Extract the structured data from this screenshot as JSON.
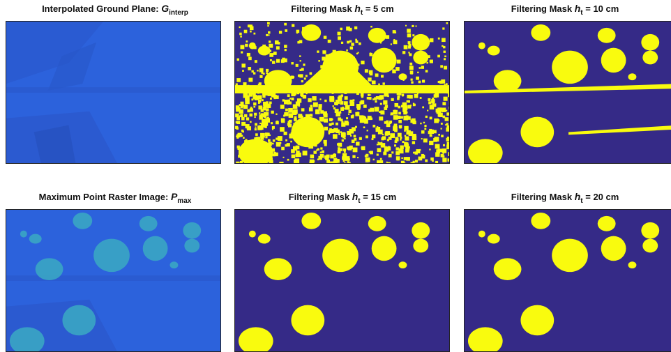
{
  "panels": [
    {
      "title": {
        "text": "Interpolated Ground Plane: ",
        "symbol": "G",
        "subscript": "interp"
      }
    },
    {
      "title": {
        "text": "Filtering Mask ",
        "symbol": "h",
        "subscript": "t",
        "suffix": " = 5 cm"
      }
    },
    {
      "title": {
        "text": "Filtering Mask ",
        "symbol": "h",
        "subscript": "t",
        "suffix": " = 10 cm"
      }
    },
    {
      "title": {
        "text": "Maximum Point Raster Image: ",
        "symbol": "P",
        "subscript": "max"
      }
    },
    {
      "title": {
        "text": "Filtering Mask ",
        "symbol": "h",
        "subscript": "t",
        "suffix": " = 15 cm"
      }
    },
    {
      "title": {
        "text": "Filtering Mask ",
        "symbol": "h",
        "subscript": "t",
        "suffix": " = 20 cm"
      }
    }
  ]
}
